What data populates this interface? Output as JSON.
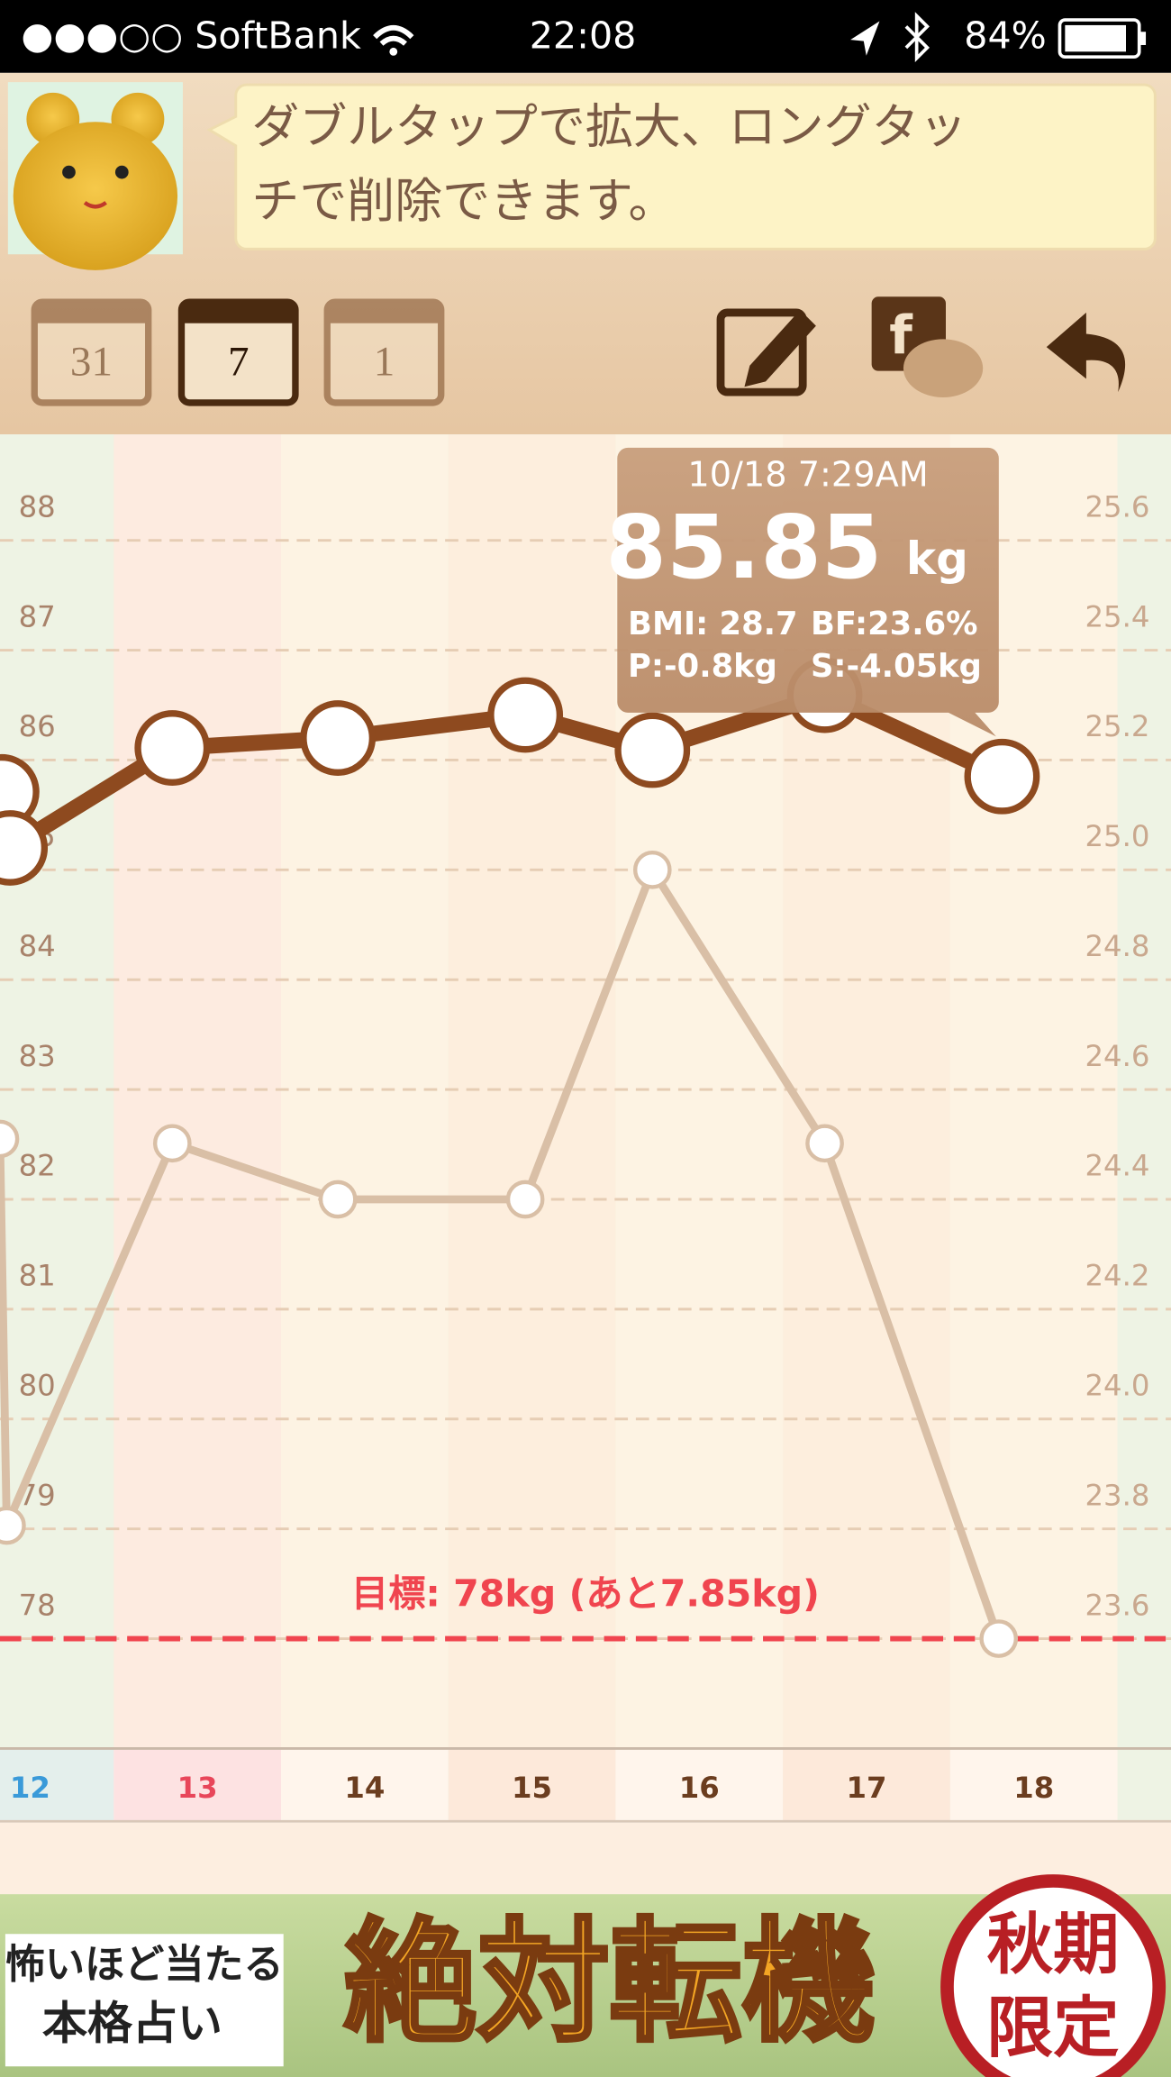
{
  "status_bar": {
    "carrier": "●●●○○ SoftBank",
    "time": "22:08",
    "battery": "84%"
  },
  "message": {
    "lines": [
      "ダブルタップで拡大、ロングタッ",
      "チで削除できます。"
    ]
  },
  "toolbar": {
    "calendars": [
      "31",
      "7",
      "1"
    ]
  },
  "chart_data": {
    "type": "line",
    "xlim": [
      12.32,
      19.32
    ],
    "xticks": [
      {
        "value": 12.5,
        "label": "12"
      },
      {
        "value": 13.5,
        "label": "13"
      },
      {
        "value": 14.5,
        "label": "14"
      },
      {
        "value": 15.5,
        "label": "15"
      },
      {
        "value": 16.5,
        "label": "16"
      },
      {
        "value": 17.5,
        "label": "17"
      },
      {
        "value": 18.5,
        "label": "18"
      }
    ],
    "ylim": [
      77,
      88.94
    ],
    "yticks": [
      78,
      79,
      80,
      81,
      82,
      83,
      84,
      85,
      86,
      87,
      88
    ],
    "y2lim": [
      23.4,
      25.788
    ],
    "y2ticks": [
      23.6,
      23.8,
      {
        "value": 24,
        "label": "24.0"
      },
      24.2,
      24.4,
      24.6,
      24.8,
      {
        "value": 25,
        "label": "25.0"
      },
      25.2,
      25.4,
      25.6
    ],
    "grid": true,
    "series": [
      {
        "color": "#d9bfa6",
        "x": [
          12.32,
          12.36,
          13.35,
          14.34,
          15.46,
          16.22,
          17.25,
          18.29
        ],
        "values": [
          82.55,
          79.03,
          82.51,
          82.0,
          82.0,
          85.0,
          82.51,
          78.0
        ]
      },
      {
        "color": "#8e4a1f",
        "x": [
          12.33,
          12.38,
          13.35,
          14.34,
          15.46,
          16.22,
          17.25,
          18.31
        ],
        "values": [
          85.71,
          85.2,
          86.11,
          86.2,
          86.41,
          86.09,
          86.59,
          85.85
        ]
      }
    ],
    "goal": {
      "value": 78,
      "label": "目標: 78kg (あと7.85kg)",
      "color": "#f0454f"
    },
    "tooltip": {
      "time": "10/18 7:29AM",
      "weight": "85.85",
      "unit": "kg",
      "bmi": "BMI: 28.7",
      "bf": "BF:23.6%",
      "p": "P:-0.8kg",
      "s": "S:-4.05kg"
    }
  },
  "ad": {
    "lines": [
      "怖いほど当たる",
      "本格占い"
    ],
    "headline": "絶対転機",
    "badge": [
      "秋期",
      "限定"
    ]
  }
}
